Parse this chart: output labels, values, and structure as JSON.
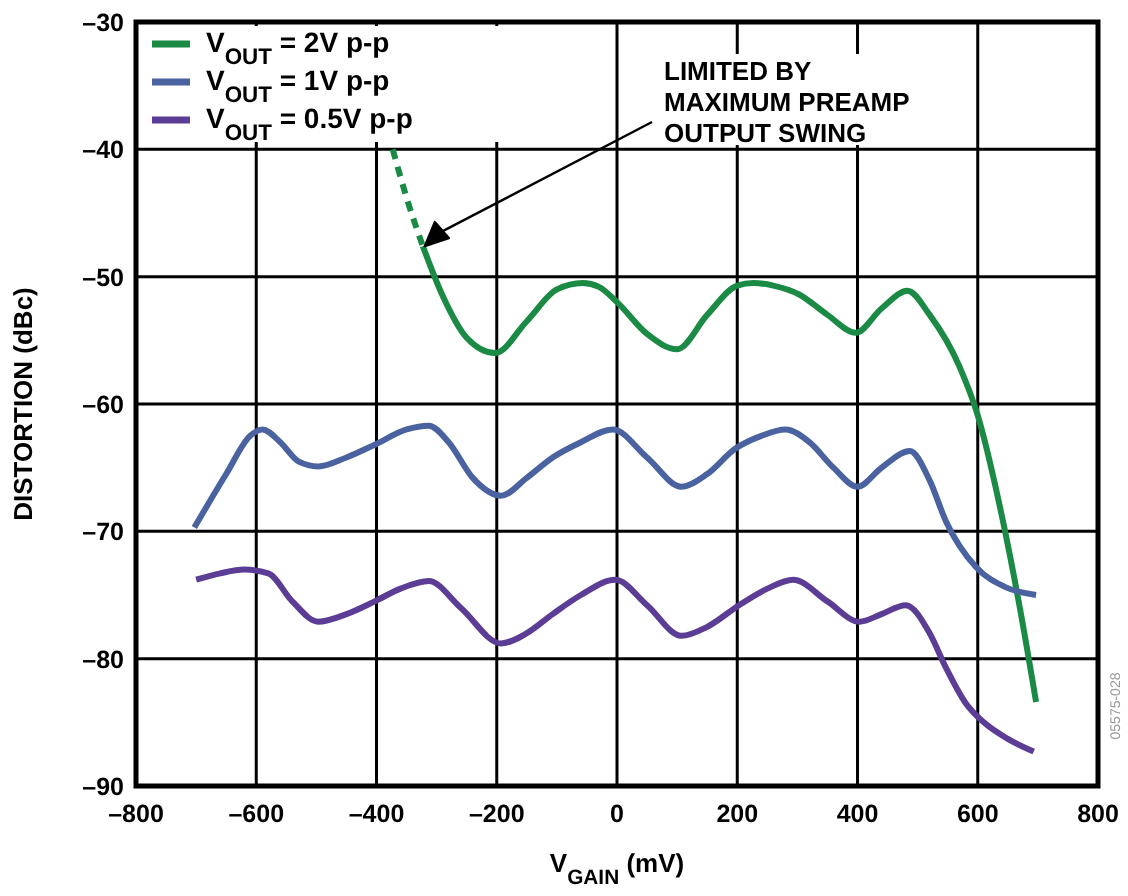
{
  "chart_data": {
    "type": "line",
    "xlabel": "V$_{GAIN}$ (mV)",
    "ylabel": "DISTORTION (dBc)",
    "xlim": [
      -800,
      800
    ],
    "xticks": [
      {
        "value": -800,
        "label": "–800"
      },
      {
        "value": -600,
        "label": "–600"
      },
      {
        "value": -400,
        "label": "–400"
      },
      {
        "value": -200,
        "label": "–200"
      },
      0,
      200,
      400,
      600,
      800
    ],
    "ylim": [
      -90,
      -30
    ],
    "yticks": [
      {
        "value": -90,
        "label": "–90"
      },
      {
        "value": -80,
        "label": "–80"
      },
      {
        "value": -70,
        "label": "–70"
      },
      {
        "value": -60,
        "label": "–60"
      },
      {
        "value": -50,
        "label": "–50"
      },
      {
        "value": -40,
        "label": "–40"
      },
      {
        "value": -30,
        "label": "–30"
      }
    ],
    "grid": true,
    "legend": "top left",
    "line_style": "solid",
    "marker": "none",
    "series": [
      {
        "name": "V$_{OUT}$ = 2V p-p",
        "color": "#1a8a45",
        "x": [
          -323,
          -290,
          -250,
          -203,
          -150,
          -100,
          -57,
          -30,
          0,
          50,
          100,
          150,
          200,
          227,
          260,
          303,
          350,
          397,
          440,
          483,
          520,
          570,
          600,
          637,
          670,
          697
        ],
        "values": [
          -47.6,
          -51.5,
          -54.8,
          -56,
          -53.5,
          -51,
          -50.5,
          -50.8,
          -52,
          -54.5,
          -55.7,
          -53,
          -50.7,
          -50.5,
          -50.7,
          -51.4,
          -53,
          -54.4,
          -52.5,
          -51.1,
          -53,
          -57.1,
          -60.9,
          -68.1,
          -76,
          -83.4
        ]
      },
      {
        "name": "V$_{OUT}$ = 1V p-p",
        "color": "#4a63a0",
        "x": [
          -703,
          -650,
          -610,
          -590,
          -560,
          -530,
          -497,
          -450,
          -403,
          -350,
          -313,
          -280,
          -240,
          -193,
          -150,
          -107,
          -60,
          -7,
          50,
          107,
          150,
          197,
          240,
          280,
          320,
          360,
          400,
          440,
          487,
          520,
          547,
          597,
          647,
          697
        ],
        "values": [
          -69.7,
          -65.5,
          -62.5,
          -62,
          -63,
          -64.5,
          -64.9,
          -64.2,
          -63.2,
          -62,
          -61.7,
          -63,
          -65.8,
          -67.2,
          -65.8,
          -64.2,
          -63,
          -62,
          -64.2,
          -66.5,
          -65.5,
          -63.5,
          -62.5,
          -62,
          -63,
          -65,
          -66.5,
          -65,
          -63.7,
          -66,
          -69.2,
          -72.8,
          -74.4,
          -75
        ]
      },
      {
        "color": "#1a8a45",
        "type": "line",
        "line_style": "dashed",
        "x": [
          -373,
          -350,
          -323
        ],
        "values": [
          -40,
          -43.8,
          -47.6
        ]
      },
      {
        "name": "V$_{OUT}$ = 0.5V p-p",
        "color": "#5b3d96",
        "x": [
          -700,
          -660,
          -620,
          -580,
          -540,
          -497,
          -450,
          -403,
          -360,
          -313,
          -260,
          -193,
          -150,
          -107,
          -60,
          -3,
          50,
          107,
          150,
          203,
          250,
          293,
          350,
          403,
          440,
          480,
          520,
          547,
          580,
          610,
          650,
          693
        ],
        "values": [
          -73.8,
          -73.3,
          -73,
          -73.3,
          -75.5,
          -77.1,
          -76.5,
          -75.5,
          -74.5,
          -73.9,
          -76,
          -78.8,
          -78,
          -76.5,
          -75,
          -73.8,
          -75.8,
          -78.2,
          -77.5,
          -75.8,
          -74.5,
          -73.8,
          -75.5,
          -77.1,
          -76.5,
          -75.8,
          -78,
          -80.7,
          -83.5,
          -85,
          -86.3,
          -87.3
        ]
      }
    ],
    "annotations": [
      "LIMITED BY\nMAXIMUM PREAMP\nOUTPUT SWING",
      "05575-028"
    ]
  }
}
